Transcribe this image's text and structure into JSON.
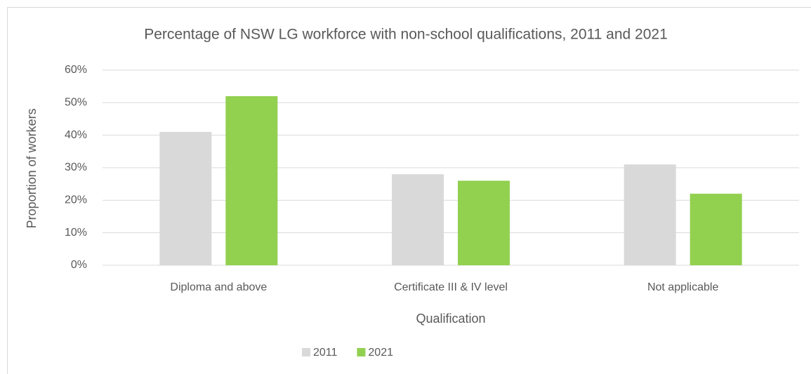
{
  "chart_data": {
    "type": "bar",
    "title": "Percentage of NSW LG workforce with non-school qualifications, 2011 and 2021",
    "x_label": "Qualification",
    "y_label": "Proportion of workers",
    "categories": [
      "Diploma and above",
      "Certificate III & IV level",
      "Not applicable"
    ],
    "series": [
      {
        "name": "2011",
        "color": "#d9d9d9",
        "values": [
          41,
          28,
          31
        ]
      },
      {
        "name": "2021",
        "color": "#92d050",
        "values": [
          52,
          26,
          22
        ]
      }
    ],
    "ylim": [
      0,
      60
    ],
    "yticks": [
      {
        "value": 0,
        "label": "0%"
      },
      {
        "value": 10,
        "label": "10%"
      },
      {
        "value": 20,
        "label": "20%"
      },
      {
        "value": 30,
        "label": "30%"
      },
      {
        "value": 40,
        "label": "40%"
      },
      {
        "value": 50,
        "label": "50%"
      },
      {
        "value": 60,
        "label": "60%"
      }
    ],
    "grid": true,
    "legend": "bottom"
  }
}
